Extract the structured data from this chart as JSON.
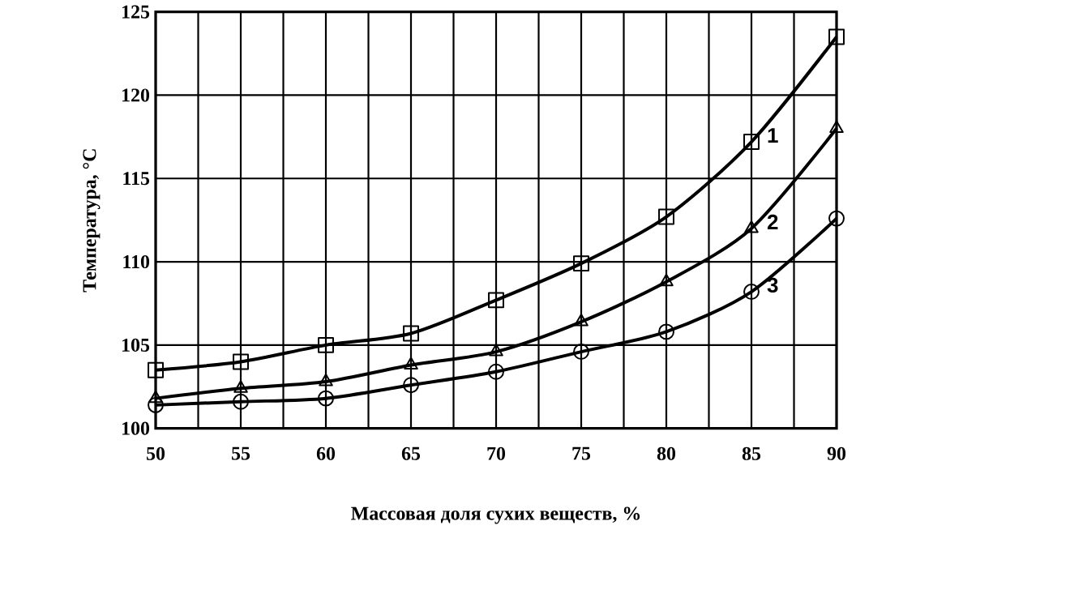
{
  "chart_data": {
    "type": "line",
    "xlabel": "Массовая доля сухих веществ, %",
    "ylabel": "Температура, °C",
    "x": [
      50,
      55,
      60,
      65,
      70,
      75,
      80,
      85,
      90
    ],
    "series": [
      {
        "name": "1",
        "color": "#000000",
        "marker": "square",
        "values": [
          103.5,
          104,
          105,
          105.7,
          107.7,
          109.9,
          112.7,
          117.2,
          123.5
        ]
      },
      {
        "name": "2",
        "color": "#000000",
        "marker": "triangle",
        "values": [
          101.8,
          102.4,
          102.8,
          103.8,
          104.6,
          106.4,
          108.8,
          112,
          118
        ]
      },
      {
        "name": "3",
        "color": "#000000",
        "marker": "circle",
        "values": [
          101.4,
          101.6,
          101.8,
          102.6,
          103.4,
          104.6,
          105.8,
          108.2,
          112.6
        ]
      }
    ],
    "xlim": [
      50,
      90
    ],
    "ylim": [
      100,
      125
    ],
    "xticks": [
      50,
      55,
      60,
      65,
      70,
      75,
      80,
      85,
      90
    ],
    "yticks": [
      100,
      105,
      110,
      115,
      120,
      125
    ],
    "grid": true,
    "line_style": "solid"
  }
}
